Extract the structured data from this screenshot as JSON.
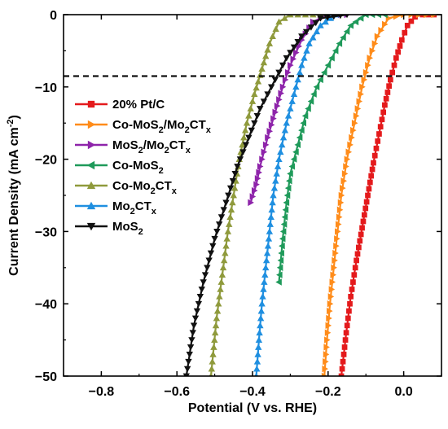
{
  "chart_data": {
    "type": "line",
    "xlabel": "Potential (V vs. RHE)",
    "ylabel_main": "Current Density (mA cm",
    "ylabel_sup": "-2",
    "ylabel_end": ")",
    "xlim": [
      -0.9,
      0.1
    ],
    "ylim": [
      -50,
      0
    ],
    "xticks": [
      {
        "value": -0.8,
        "label": "−0.8"
      },
      {
        "value": -0.6,
        "label": "−0.6"
      },
      {
        "value": -0.4,
        "label": "−0.4"
      },
      {
        "value": -0.2,
        "label": "−0.2"
      },
      {
        "value": 0.0,
        "label": "0.0"
      }
    ],
    "yticks": [
      {
        "value": 0,
        "label": "0"
      },
      {
        "value": -10,
        "label": "−10"
      },
      {
        "value": -20,
        "label": "−20"
      },
      {
        "value": -30,
        "label": "−30"
      },
      {
        "value": -40,
        "label": "−40"
      },
      {
        "value": -50,
        "label": "−50"
      }
    ],
    "reference_line": {
      "y": -8.5,
      "style": "dashed"
    },
    "legend_position": "upper-left",
    "series": [
      {
        "name": "20% Pt/C",
        "label_parts": [
          [
            "20% Pt/C",
            ""
          ]
        ],
        "marker": "square",
        "color": "#e41a1c",
        "points": [
          [
            0.08,
            0
          ],
          [
            0.05,
            0
          ],
          [
            0.03,
            -0.3
          ],
          [
            0.01,
            -1.5
          ],
          [
            -0.005,
            -3.5
          ],
          [
            -0.02,
            -6
          ],
          [
            -0.035,
            -9
          ],
          [
            -0.05,
            -12.5
          ],
          [
            -0.065,
            -16.5
          ],
          [
            -0.08,
            -20.5
          ],
          [
            -0.095,
            -25
          ],
          [
            -0.11,
            -29.5
          ],
          [
            -0.125,
            -34
          ],
          [
            -0.14,
            -39
          ],
          [
            -0.152,
            -44
          ],
          [
            -0.165,
            -50
          ]
        ]
      },
      {
        "name": "Co-MoS2/Mo2CTx",
        "label_parts": [
          [
            "Co-MoS",
            "2"
          ],
          [
            "/Mo",
            "2"
          ],
          [
            "CT",
            "x"
          ]
        ],
        "marker": "right-triangle",
        "color": "#ff8c1a",
        "points": [
          [
            0.08,
            0
          ],
          [
            0.0,
            0
          ],
          [
            -0.04,
            -0.5
          ],
          [
            -0.07,
            -3
          ],
          [
            -0.09,
            -6
          ],
          [
            -0.11,
            -10
          ],
          [
            -0.13,
            -15
          ],
          [
            -0.15,
            -20
          ],
          [
            -0.165,
            -25
          ],
          [
            -0.175,
            -30
          ],
          [
            -0.185,
            -35
          ],
          [
            -0.195,
            -40
          ],
          [
            -0.203,
            -45
          ],
          [
            -0.21,
            -50
          ]
        ]
      },
      {
        "name": "MoS2/Mo2CTx",
        "label_parts": [
          [
            "MoS",
            "2"
          ],
          [
            "/Mo",
            "2"
          ],
          [
            "CT",
            "x"
          ]
        ],
        "marker": "right-triangle",
        "color": "#8e24aa",
        "points": [
          [
            -0.15,
            0
          ],
          [
            -0.2,
            0
          ],
          [
            -0.24,
            -1
          ],
          [
            -0.27,
            -3.5
          ],
          [
            -0.3,
            -7
          ],
          [
            -0.32,
            -10
          ],
          [
            -0.34,
            -13.5
          ],
          [
            -0.36,
            -17
          ],
          [
            -0.38,
            -21
          ],
          [
            -0.39,
            -23.5
          ],
          [
            -0.405,
            -26
          ]
        ]
      },
      {
        "name": "Co-MoS2",
        "label_parts": [
          [
            "Co-MoS",
            "2"
          ]
        ],
        "marker": "left-triangle",
        "color": "#1f9a5a",
        "points": [
          [
            -0.05,
            0
          ],
          [
            -0.1,
            0
          ],
          [
            -0.14,
            -1.5
          ],
          [
            -0.17,
            -4
          ],
          [
            -0.2,
            -7
          ],
          [
            -0.23,
            -10
          ],
          [
            -0.26,
            -14
          ],
          [
            -0.28,
            -18
          ],
          [
            -0.3,
            -22
          ],
          [
            -0.31,
            -26
          ],
          [
            -0.32,
            -31
          ],
          [
            -0.33,
            -37
          ]
        ]
      },
      {
        "name": "Co-Mo2CTx",
        "label_parts": [
          [
            "Co-Mo",
            "2"
          ],
          [
            "CT",
            "x"
          ]
        ],
        "marker": "up-triangle",
        "color": "#8f9a3c",
        "points": [
          [
            -0.2,
            0
          ],
          [
            -0.3,
            0
          ],
          [
            -0.33,
            -1
          ],
          [
            -0.355,
            -4
          ],
          [
            -0.375,
            -7.5
          ],
          [
            -0.395,
            -11
          ],
          [
            -0.415,
            -15
          ],
          [
            -0.435,
            -20
          ],
          [
            -0.45,
            -25
          ],
          [
            -0.465,
            -30
          ],
          [
            -0.48,
            -36
          ],
          [
            -0.495,
            -42
          ],
          [
            -0.51,
            -50
          ]
        ]
      },
      {
        "name": "Mo2CTx",
        "label_parts": [
          [
            "Mo",
            "2"
          ],
          [
            "CT",
            "x"
          ]
        ],
        "marker": "up-triangle",
        "color": "#1f8fe0",
        "points": [
          [
            -0.18,
            0
          ],
          [
            -0.22,
            -1.5
          ],
          [
            -0.25,
            -4
          ],
          [
            -0.27,
            -7
          ],
          [
            -0.29,
            -11
          ],
          [
            -0.31,
            -15
          ],
          [
            -0.33,
            -20
          ],
          [
            -0.345,
            -25
          ],
          [
            -0.355,
            -30
          ],
          [
            -0.365,
            -35
          ],
          [
            -0.375,
            -40
          ],
          [
            -0.383,
            -45
          ],
          [
            -0.39,
            -50
          ]
        ]
      },
      {
        "name": "MoS2",
        "label_parts": [
          [
            "MoS",
            "2"
          ]
        ],
        "marker": "down-triangle",
        "color": "#111111",
        "points": [
          [
            -0.15,
            0
          ],
          [
            -0.22,
            -0.5
          ],
          [
            -0.27,
            -3
          ],
          [
            -0.31,
            -6
          ],
          [
            -0.34,
            -9
          ],
          [
            -0.38,
            -13
          ],
          [
            -0.41,
            -17
          ],
          [
            -0.44,
            -21
          ],
          [
            -0.47,
            -26
          ],
          [
            -0.5,
            -31
          ],
          [
            -0.53,
            -37
          ],
          [
            -0.555,
            -43
          ],
          [
            -0.575,
            -50
          ]
        ]
      }
    ]
  }
}
